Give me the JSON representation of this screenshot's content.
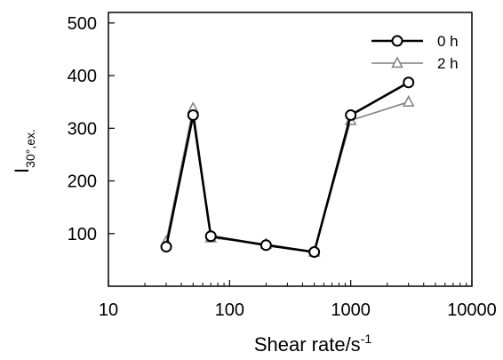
{
  "chart_data": {
    "type": "line",
    "xscale": "log",
    "xlim": [
      10,
      10000
    ],
    "ylim": [
      0,
      520
    ],
    "xticks": [
      10,
      100,
      1000,
      10000
    ],
    "xtick_labels": [
      "10",
      "100",
      "1000",
      "10000"
    ],
    "yticks": [
      100,
      200,
      300,
      400,
      500
    ],
    "ytick_labels": [
      "100",
      "200",
      "300",
      "400",
      "500"
    ],
    "xlabel": "Shear rate/s",
    "xlabel_sup": "-1",
    "ylabel": "I",
    "ylabel_sub": "30°,ex.",
    "grid": false,
    "legend_position": "top-right",
    "x": [
      30,
      50,
      70,
      200,
      500,
      1000,
      3000
    ],
    "series": [
      {
        "name": "0 h",
        "color": "#000000",
        "marker": "circle",
        "values": [
          75,
          325,
          95,
          78,
          65,
          325,
          387
        ]
      },
      {
        "name": "2 h",
        "color": "#808080",
        "marker": "triangle",
        "values": [
          85,
          338,
          92,
          80,
          65,
          315,
          350
        ]
      }
    ]
  }
}
